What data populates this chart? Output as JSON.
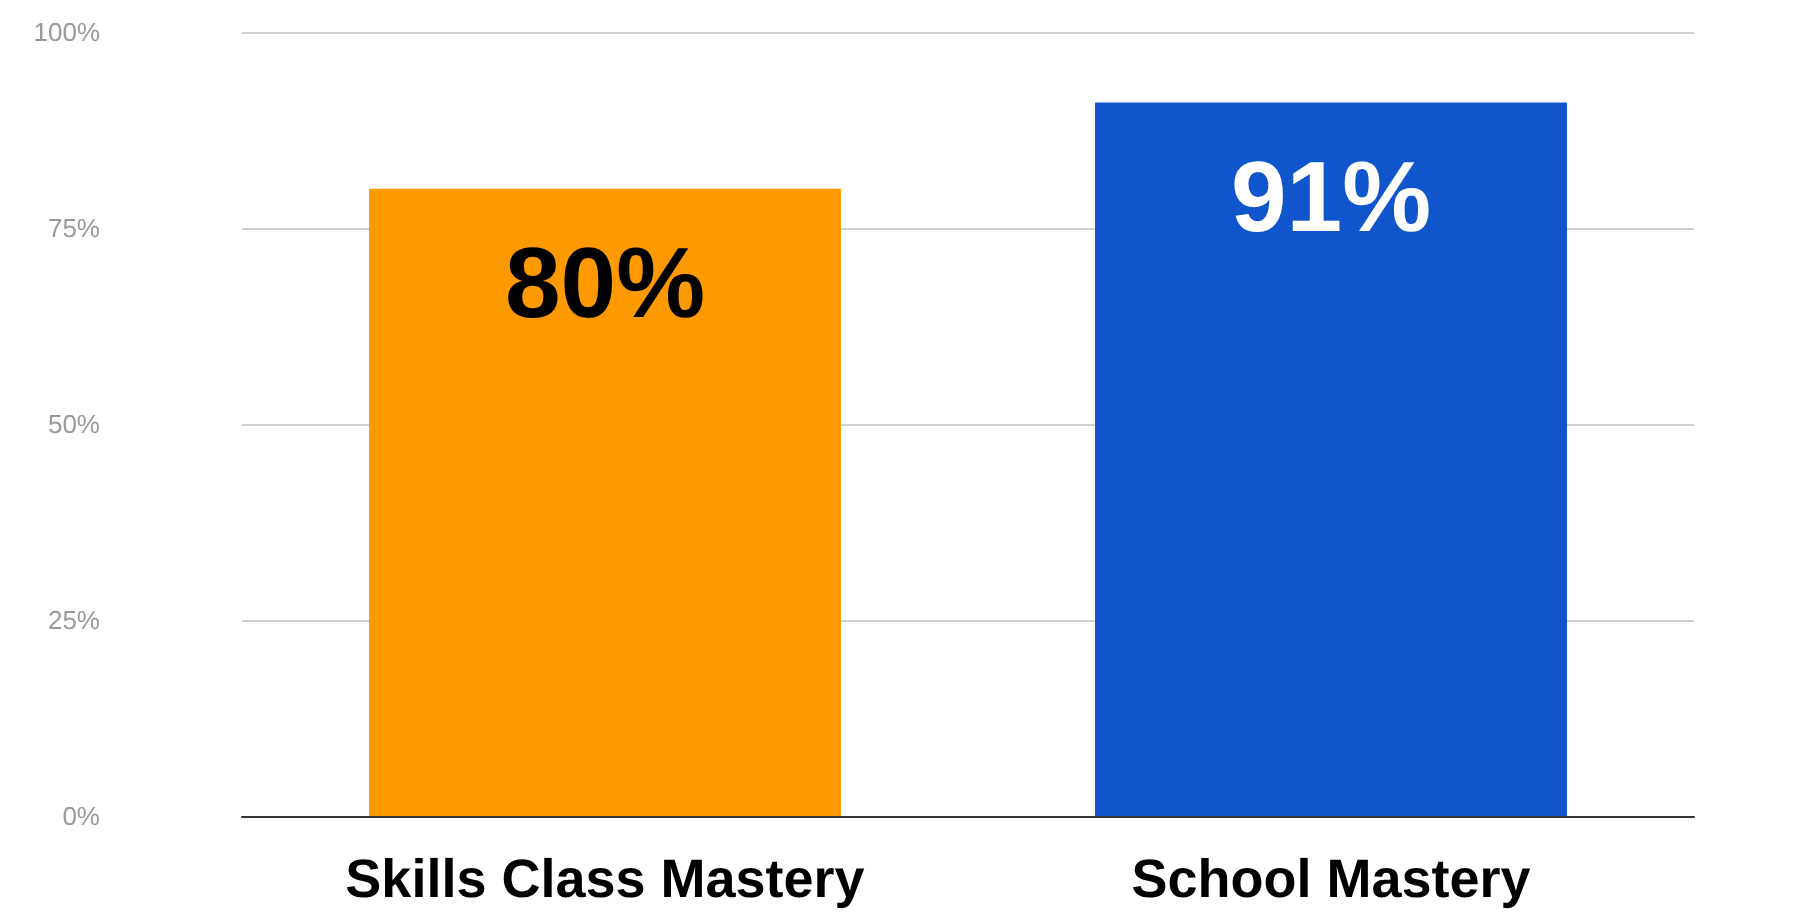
{
  "chart_data": {
    "type": "bar",
    "categories": [
      "Skills Class Mastery",
      "School Mastery"
    ],
    "values": [
      80,
      91
    ],
    "colors": [
      "#ff9900",
      "#1155cc"
    ],
    "value_labels": [
      "80%",
      "91%"
    ],
    "ylim": [
      0,
      100
    ],
    "yticks": [
      {
        "value": 0,
        "label": "0%"
      },
      {
        "value": 25,
        "label": "25%"
      },
      {
        "value": 50,
        "label": "50%"
      },
      {
        "value": 75,
        "label": "75%"
      },
      {
        "value": 100,
        "label": "100%"
      }
    ],
    "grid": "y"
  }
}
